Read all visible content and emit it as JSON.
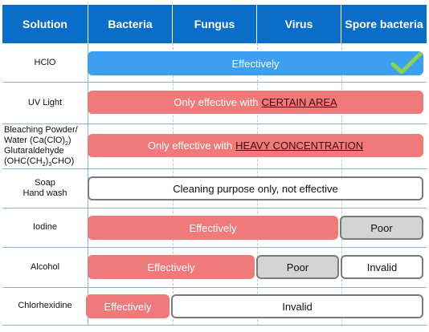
{
  "header": {
    "solution": "Solution",
    "bacteria": "Bacteria",
    "fungus": "Fungus",
    "virus": "Virus",
    "spore": "Spore bacteria"
  },
  "rows": {
    "hclo": {
      "label": "HClO",
      "bar": "Effectively"
    },
    "uv": {
      "label": "UV Light",
      "bar_prefix": "Only effective with",
      "bar_emph": "CERTAIN AREA"
    },
    "bleach": {
      "label_l1": "Bleaching Powder/",
      "label_l2a": "Water  (Ca(ClO)",
      "label_l2b": "2",
      "label_l2c": ")",
      "label_l3": "Glutaraldehyde",
      "label_l4a": "(OHC(CH",
      "label_l4b": "2",
      "label_l4c": ")",
      "label_l4d": "3",
      "label_l4e": "CHO)",
      "bar_prefix": "Only effective with",
      "bar_emph": "HEAVY CONCENTRATION"
    },
    "soap": {
      "label_l1": "Soap",
      "label_l2": "Hand wash",
      "bar": "Cleaning  purpose only, not effective"
    },
    "iodine": {
      "label": "Iodine",
      "bar_main": "Effectively",
      "bar_spore": "Poor"
    },
    "alcohol": {
      "label": "Alcohol",
      "bar_main": "Effectively",
      "bar_virus": "Poor",
      "bar_spore": "Invalid"
    },
    "chlor": {
      "label": "Chlorhexidine",
      "bar_main": "Effectively",
      "bar_rest": "Invalid"
    }
  },
  "colors": {
    "header_bg": "#0a6ec9",
    "effective_blue": "#3d9fef",
    "effective_red": "#f07a7a",
    "poor_grey": "#d4d4d4",
    "check_green": "#8ed44a"
  },
  "icons": {
    "hclo_mark": "checkmark-icon"
  }
}
